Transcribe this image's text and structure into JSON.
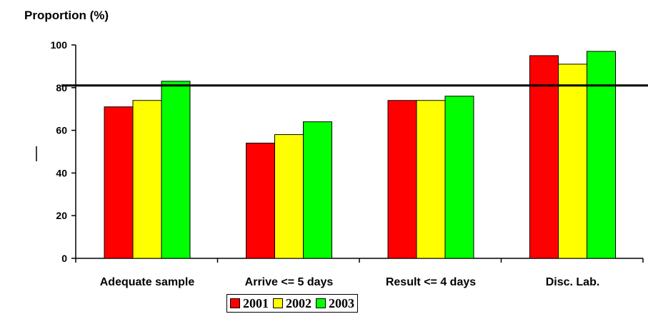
{
  "chart_data": {
    "type": "bar",
    "title": "",
    "ylabel": "Proportion (%)",
    "xlabel": "",
    "ylim": [
      0,
      100
    ],
    "yticks": [
      0,
      20,
      40,
      60,
      80,
      100
    ],
    "categories": [
      "Adequate sample",
      "Arrive <= 5 days",
      "Result <= 4 days",
      "Disc. Lab."
    ],
    "series": [
      {
        "name": "2001",
        "color": "#ff0000",
        "values": [
          71,
          54,
          74,
          95
        ]
      },
      {
        "name": "2002",
        "color": "#ffff00",
        "values": [
          74,
          58,
          74,
          91
        ]
      },
      {
        "name": "2003",
        "color": "#00ff00",
        "values": [
          83,
          64,
          76,
          97
        ]
      }
    ],
    "reference_line": {
      "value": 81
    },
    "grid": false,
    "legend_position": "bottom"
  }
}
